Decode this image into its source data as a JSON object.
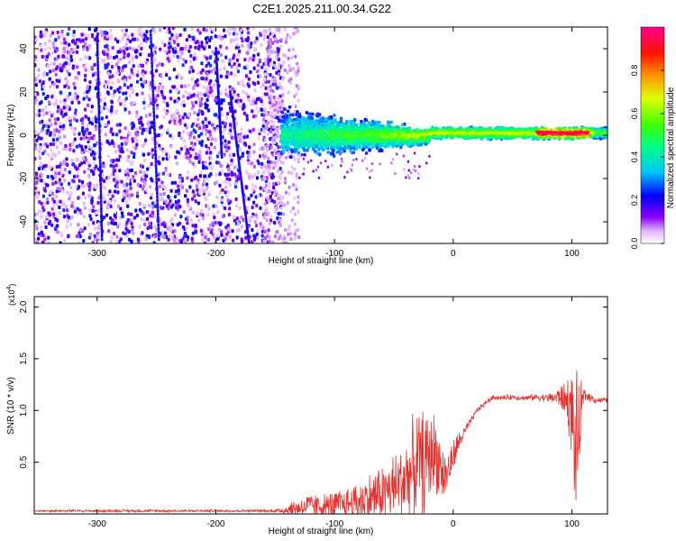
{
  "figure": {
    "title": "C2E1.2025.211.00.34.G22"
  },
  "chart_data": [
    {
      "id": "spectrogram",
      "type": "heatmap",
      "xlabel": "Height of straight line (km)",
      "ylabel": "Frequency (Hz)",
      "xlim": [
        -353,
        130
      ],
      "ylim": [
        -50,
        50
      ],
      "xticks": [
        -300,
        -200,
        -100,
        0,
        100
      ],
      "yticks": [
        -40,
        -20,
        0,
        20,
        40
      ],
      "grid": false,
      "colorbar": {
        "label": "Normalized spectral amplitude",
        "range": [
          0,
          1
        ],
        "ticks": [
          0.0,
          0.2,
          0.4,
          0.6,
          0.8
        ],
        "colormap": [
          "#ffffff",
          "#e8b8ff",
          "#9000ff",
          "#0000ff",
          "#00e0ff",
          "#00ff40",
          "#ffff00",
          "#ff8000",
          "#ff0000",
          "#ff0090"
        ]
      },
      "regions": [
        {
          "x": [
            -353,
            -145
          ],
          "freq_spread_hz": [
            -50,
            50
          ],
          "amplitude": "low (0.05-0.25)",
          "pattern": "broadband noise with diagonal streaks"
        },
        {
          "x": [
            -145,
            -20
          ],
          "freq_spread_hz": [
            -15,
            15
          ],
          "amplitude": "0.2-0.6",
          "pattern": "narrowing band around 0 Hz"
        },
        {
          "x": [
            -20,
            130
          ],
          "freq_spread_hz": [
            -3,
            4
          ],
          "amplitude": "0.5-1.0",
          "pattern": "thin band centered near 1 Hz, peaks near 80-110 km"
        }
      ]
    },
    {
      "id": "snr",
      "type": "line",
      "xlabel": "Height of straight line (km)",
      "ylabel": "SNR (10 * v/v)",
      "y_scale_label": "(x10",
      "y_scale_exp": "4",
      "y_scale_close": ")",
      "xlim": [
        -353,
        130
      ],
      "ylim": [
        0,
        21000
      ],
      "xticks": [
        -300,
        -200,
        -100,
        0,
        100
      ],
      "yticks": [
        5000,
        10000,
        15000,
        20000
      ],
      "ytick_labels": [
        "0.5",
        "1.0",
        "1.5",
        "2.0"
      ],
      "grid": false,
      "color": "#e8302c",
      "envelope": {
        "x": [
          -353,
          -300,
          -250,
          -200,
          -150,
          -140,
          -130,
          -120,
          -110,
          -100,
          -90,
          -80,
          -70,
          -60,
          -50,
          -45,
          -40,
          -35,
          -30,
          -25,
          -20,
          -15,
          -10,
          -8,
          -5,
          0,
          5,
          10,
          15,
          20,
          25,
          30,
          35,
          40,
          50,
          60,
          70,
          80,
          90,
          95,
          98,
          100,
          102,
          104,
          106,
          108,
          110,
          115,
          120,
          130
        ],
        "base": [
          300,
          300,
          300,
          300,
          300,
          400,
          600,
          800,
          700,
          800,
          1000,
          1200,
          1500,
          2000,
          2500,
          3000,
          3500,
          4000,
          5000,
          5000,
          5500,
          6000,
          4500,
          3500,
          4000,
          5500,
          7000,
          8000,
          9000,
          10000,
          10500,
          11000,
          11300,
          11200,
          11300,
          11200,
          11300,
          11200,
          11300,
          11000,
          10500,
          9500,
          7000,
          5500,
          7500,
          10000,
          11500,
          11300,
          11000,
          11000
        ],
        "amp": [
          120,
          150,
          150,
          150,
          200,
          800,
          1200,
          1500,
          1400,
          1700,
          2000,
          2500,
          3000,
          3500,
          4000,
          4500,
          5000,
          5500,
          6000,
          6000,
          5500,
          4500,
          3500,
          3000,
          2500,
          2000,
          1200,
          700,
          400,
          300,
          300,
          300,
          300,
          300,
          300,
          300,
          400,
          500,
          1200,
          2500,
          4000,
          5000,
          6000,
          9000,
          6000,
          3000,
          1000,
          500,
          400,
          300
        ]
      }
    }
  ]
}
